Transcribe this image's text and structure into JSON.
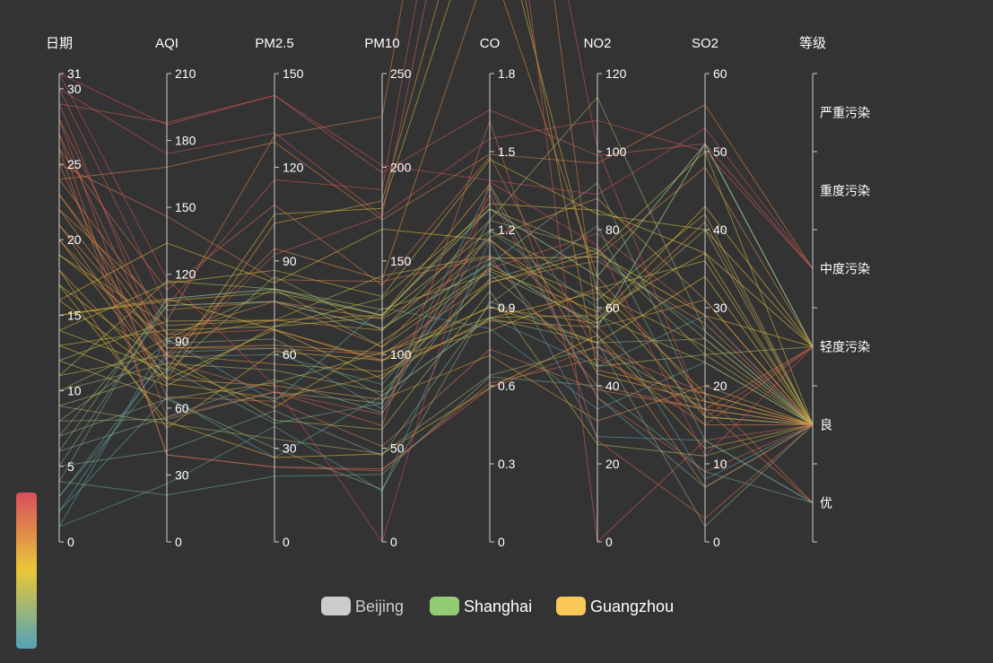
{
  "chart_data": {
    "type": "parallel",
    "axes": [
      {
        "key": "date",
        "name": "日期",
        "type": "value",
        "min": 0,
        "max": 31,
        "ticks": [
          0,
          5,
          10,
          15,
          20,
          25,
          30,
          31
        ]
      },
      {
        "key": "aqi",
        "name": "AQI",
        "type": "value",
        "min": 0,
        "max": 210,
        "ticks": [
          0,
          30,
          60,
          90,
          120,
          150,
          180,
          210
        ]
      },
      {
        "key": "pm25",
        "name": "PM2.5",
        "type": "value",
        "min": 0,
        "max": 150,
        "ticks": [
          0,
          30,
          60,
          90,
          120,
          150
        ]
      },
      {
        "key": "pm10",
        "name": "PM10",
        "type": "value",
        "min": 0,
        "max": 250,
        "ticks": [
          0,
          50,
          100,
          150,
          200,
          250
        ]
      },
      {
        "key": "co",
        "name": "CO",
        "type": "value",
        "min": 0,
        "max": 1.8,
        "ticks": [
          0,
          0.3,
          0.6,
          0.9,
          1.2,
          1.5,
          1.8
        ]
      },
      {
        "key": "no2",
        "name": "NO2",
        "type": "value",
        "min": 0,
        "max": 120,
        "ticks": [
          0,
          20,
          40,
          60,
          80,
          100,
          120
        ]
      },
      {
        "key": "so2",
        "name": "SO2",
        "type": "value",
        "min": 0,
        "max": 60,
        "ticks": [
          0,
          10,
          20,
          30,
          40,
          50,
          60
        ]
      },
      {
        "key": "level",
        "name": "等级",
        "type": "category",
        "categories": [
          "优",
          "良",
          "轻度污染",
          "中度污染",
          "重度污染",
          "严重污染"
        ]
      }
    ],
    "legend": {
      "placement": "bottom-center",
      "items": [
        {
          "name": "Beijing",
          "color": "#cccccc",
          "text_color": "#cccccc"
        },
        {
          "name": "Shanghai",
          "color": "#91cc75",
          "text_color": "#ffffff"
        },
        {
          "name": "Guangzhou",
          "color": "#fac858",
          "text_color": "#ffffff"
        }
      ]
    },
    "visual_map": {
      "dimension": "date",
      "min": 0,
      "max": 31,
      "colors": [
        "#50a3ba",
        "#eac736",
        "#d94e5d"
      ],
      "placement": "bottom-left"
    },
    "series": [
      {
        "name": "Shanghai",
        "records": [
          [
            1,
            91,
            45,
            125,
            0.82,
            34,
            23,
            "良"
          ],
          [
            2,
            65,
            27,
            78,
            0.86,
            45,
            29,
            "良"
          ],
          [
            3,
            83,
            60,
            84,
            1.09,
            73,
            27,
            "良"
          ],
          [
            4,
            109,
            81,
            121,
            1.28,
            68,
            51,
            "轻度污染"
          ],
          [
            5,
            106,
            77,
            114,
            1.07,
            55,
            51,
            "轻度污染"
          ],
          [
            6,
            109,
            81,
            121,
            1.28,
            68,
            51,
            "轻度污染"
          ],
          [
            7,
            106,
            77,
            114,
            1.07,
            55,
            51,
            "轻度污染"
          ],
          [
            8,
            89,
            65,
            78,
            0.86,
            51,
            26,
            "良"
          ],
          [
            9,
            53,
            33,
            47,
            0.64,
            50,
            17,
            "良"
          ],
          [
            10,
            80,
            55,
            80,
            1.01,
            75,
            24,
            "良"
          ],
          [
            11,
            117,
            81,
            124,
            1.03,
            45,
            24,
            "轻度污染"
          ],
          [
            12,
            99,
            71,
            142,
            1.1,
            62,
            42,
            "良"
          ],
          [
            13,
            95,
            69,
            130,
            1.28,
            74,
            50,
            "良"
          ],
          [
            14,
            116,
            87,
            131,
            1.47,
            84,
            40,
            "轻度污染"
          ],
          [
            15,
            108,
            80,
            121,
            1.3,
            85,
            37,
            "轻度污染"
          ],
          [
            16,
            134,
            83,
            167,
            1.16,
            57,
            43,
            "轻度污染"
          ],
          [
            17,
            79,
            43,
            107,
            1.05,
            59,
            37,
            "良"
          ],
          [
            18,
            71,
            46,
            89,
            0.86,
            64,
            25,
            "良"
          ],
          [
            19,
            97,
            71,
            113,
            1.17,
            88,
            31,
            "良"
          ],
          [
            20,
            84,
            57,
            91,
            0.85,
            55,
            31,
            "良"
          ],
          [
            21,
            87,
            63,
            101,
            0.9,
            56,
            41,
            "良"
          ],
          [
            22,
            104,
            77,
            119,
            1.09,
            73,
            48,
            "轻度污染"
          ],
          [
            23,
            87,
            62,
            100,
            1,
            72,
            28,
            "良"
          ],
          [
            24,
            168,
            128,
            172,
            1.49,
            97,
            56,
            "中度污染"
          ],
          [
            25,
            65,
            45,
            51,
            0.74,
            39,
            17,
            "良"
          ],
          [
            26,
            39,
            24,
            38,
            0.61,
            47,
            17,
            "优"
          ],
          [
            27,
            39,
            24,
            39,
            0.59,
            50,
            19,
            "优"
          ],
          [
            28,
            93,
            68,
            96,
            1.05,
            79,
            29,
            "良"
          ],
          [
            29,
            188,
            143,
            197,
            1.66,
            99,
            51,
            "中度污染"
          ],
          [
            30,
            174,
            131,
            174,
            1.55,
            108,
            50,
            "中度污染"
          ],
          [
            31,
            187,
            143,
            201,
            1.39,
            89,
            53,
            "中度污染"
          ]
        ]
      },
      {
        "name": "Guangzhou",
        "records": [
          [
            1,
            26,
            37,
            27,
            1.163,
            27,
            13,
            "优"
          ],
          [
            2,
            85,
            62,
            71,
            1.195,
            60,
            8,
            "良"
          ],
          [
            3,
            78,
            38,
            74,
            1.363,
            37,
            7,
            "良"
          ],
          [
            4,
            21,
            21,
            36,
            0.634,
            40,
            9,
            "优"
          ],
          [
            5,
            41,
            42,
            46,
            0.915,
            81,
            13,
            "优"
          ],
          [
            6,
            56,
            52,
            69,
            1.067,
            92,
            16,
            "良"
          ],
          [
            7,
            64,
            30,
            28,
            0.924,
            51,
            2,
            "良"
          ],
          [
            8,
            55,
            48,
            74,
            1.236,
            75,
            26,
            "良"
          ],
          [
            9,
            76,
            85,
            113,
            1.237,
            114,
            27,
            "良"
          ],
          [
            10,
            91,
            81,
            104,
            1.041,
            56,
            40,
            "良"
          ],
          [
            11,
            84,
            39,
            60,
            0.964,
            25,
            11,
            "良"
          ],
          [
            12,
            64,
            51,
            101,
            0.862,
            58,
            23,
            "良"
          ],
          [
            13,
            70,
            69,
            120,
            1.198,
            65,
            36,
            "良"
          ],
          [
            14,
            77,
            105,
            178,
            2.549,
            64,
            16,
            "良"
          ],
          [
            15,
            109,
            68,
            87,
            0.996,
            74,
            29,
            "轻度污染"
          ],
          [
            16,
            73,
            68,
            97,
            0.905,
            51,
            34,
            "良"
          ],
          [
            17,
            54,
            27,
            47,
            0.592,
            53,
            12,
            "良"
          ],
          [
            18,
            51,
            61,
            97,
            0.811,
            65,
            19,
            "良"
          ],
          [
            19,
            91,
            71,
            121,
            1.374,
            43,
            18,
            "良"
          ],
          [
            20,
            73,
            102,
            182,
            2.787,
            44,
            19,
            "良"
          ],
          [
            21,
            73,
            50,
            76,
            0.717,
            31,
            20,
            "良"
          ],
          [
            22,
            84,
            94,
            140,
            2.238,
            68,
            18,
            "良"
          ],
          [
            23,
            93,
            77,
            104,
            1.165,
            53,
            7,
            "良"
          ],
          [
            24,
            99,
            130,
            227,
            3.97,
            55,
            15,
            "良"
          ],
          [
            25,
            146,
            84,
            139,
            1.094,
            40,
            17,
            "轻度污染"
          ],
          [
            26,
            113,
            108,
            137,
            1.481,
            48,
            15,
            "轻度污染"
          ],
          [
            27,
            81,
            48,
            62,
            1.619,
            26,
            3,
            "良"
          ],
          [
            28,
            56,
            48,
            68,
            1.336,
            37,
            9,
            "良"
          ],
          [
            29,
            82,
            92,
            174,
            3.29,
            0,
            13,
            "良"
          ],
          [
            30,
            106,
            116,
            188,
            3.628,
            101,
            16,
            "轻度污染"
          ],
          [
            31,
            118,
            50,
            0,
            1.383,
            76,
            11,
            "轻度污染"
          ]
        ]
      }
    ]
  }
}
